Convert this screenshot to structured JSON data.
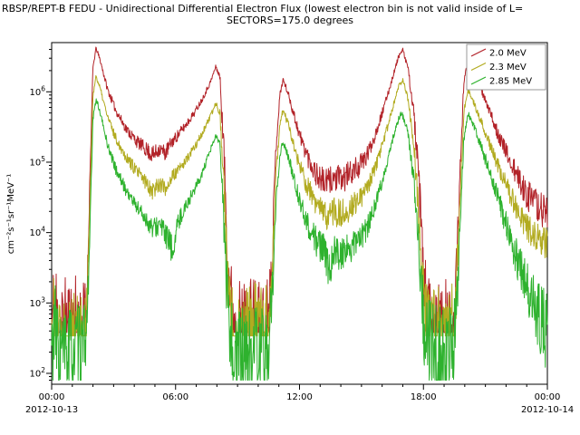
{
  "chart_data": {
    "type": "line",
    "title": "RBSP/REPT-B  FEDU - Unidirectional Differential Electron Flux (lowest electron bin is not valid inside of L=",
    "subtitle": "SECTORS=175.0 degrees",
    "ylabel": "cm⁻²s⁻¹sr⁻¹MeV⁻¹",
    "y_scale": "log",
    "ylim": [
      70,
      5000000
    ],
    "y_tick_exponents": [
      2,
      3,
      4,
      5,
      6
    ],
    "x_range_hours": [
      0,
      24
    ],
    "x_major_ticks": [
      {
        "h": 0,
        "label": "00:00"
      },
      {
        "h": 6,
        "label": "06:00"
      },
      {
        "h": 12,
        "label": "12:00"
      },
      {
        "h": 18,
        "label": "18:00"
      },
      {
        "h": 24,
        "label": "00:00"
      }
    ],
    "x_minor_step_hours": 1,
    "x_date_left": "2012-10-13",
    "x_date_right": "2012-10-14",
    "legend_position": "top-right",
    "series": [
      {
        "name": "2.0 MeV",
        "color": "#b22228",
        "floor": 380,
        "seed": 11,
        "points": [
          [
            0.0,
            450,
            0.8
          ],
          [
            0.15,
            900,
            0.85
          ],
          [
            0.35,
            420,
            0.8
          ],
          [
            0.6,
            380,
            0.8
          ],
          [
            0.9,
            450,
            0.8
          ],
          [
            1.2,
            400,
            0.8
          ],
          [
            1.5,
            420,
            0.75
          ],
          [
            1.7,
            900,
            0.4
          ],
          [
            1.85,
            60000,
            0.08
          ],
          [
            2.0,
            2200000,
            0.04
          ],
          [
            2.15,
            4200000,
            0.03
          ],
          [
            2.35,
            2800000,
            0.03
          ],
          [
            2.7,
            1100000,
            0.05
          ],
          [
            3.1,
            550000,
            0.06
          ],
          [
            3.6,
            300000,
            0.07
          ],
          [
            4.1,
            200000,
            0.09
          ],
          [
            4.6,
            150000,
            0.11
          ],
          [
            4.9,
            125000,
            0.13
          ],
          [
            5.2,
            155000,
            0.11
          ],
          [
            5.5,
            135000,
            0.12
          ],
          [
            5.8,
            190000,
            0.09
          ],
          [
            6.1,
            240000,
            0.08
          ],
          [
            6.5,
            340000,
            0.06
          ],
          [
            6.9,
            500000,
            0.05
          ],
          [
            7.3,
            800000,
            0.04
          ],
          [
            7.7,
            1400000,
            0.035
          ],
          [
            7.95,
            2300000,
            0.03
          ],
          [
            8.15,
            1600000,
            0.05
          ],
          [
            8.35,
            120000,
            0.25
          ],
          [
            8.55,
            3000,
            0.5
          ],
          [
            8.8,
            450,
            0.7
          ],
          [
            9.1,
            400,
            0.75
          ],
          [
            9.45,
            420,
            0.75
          ],
          [
            9.8,
            450,
            0.75
          ],
          [
            10.15,
            400,
            0.75
          ],
          [
            10.45,
            500,
            0.7
          ],
          [
            10.65,
            3000,
            0.4
          ],
          [
            10.85,
            150000,
            0.12
          ],
          [
            11.05,
            900000,
            0.05
          ],
          [
            11.2,
            1500000,
            0.035
          ],
          [
            11.45,
            950000,
            0.05
          ],
          [
            11.75,
            450000,
            0.08
          ],
          [
            12.05,
            220000,
            0.11
          ],
          [
            12.45,
            110000,
            0.15
          ],
          [
            12.85,
            65000,
            0.18
          ],
          [
            13.25,
            50000,
            0.2
          ],
          [
            13.65,
            60000,
            0.2
          ],
          [
            14.05,
            55000,
            0.2
          ],
          [
            14.45,
            70000,
            0.18
          ],
          [
            14.85,
            85000,
            0.16
          ],
          [
            15.25,
            120000,
            0.13
          ],
          [
            15.65,
            240000,
            0.09
          ],
          [
            16.05,
            550000,
            0.06
          ],
          [
            16.45,
            1400000,
            0.04
          ],
          [
            16.8,
            3200000,
            0.03
          ],
          [
            17.0,
            3900000,
            0.03
          ],
          [
            17.25,
            2200000,
            0.04
          ],
          [
            17.55,
            450000,
            0.12
          ],
          [
            17.8,
            40000,
            0.3
          ],
          [
            18.05,
            1500,
            0.5
          ],
          [
            18.35,
            450,
            0.7
          ],
          [
            18.7,
            400,
            0.75
          ],
          [
            19.0,
            380,
            0.75
          ],
          [
            19.3,
            450,
            0.7
          ],
          [
            19.55,
            800,
            0.6
          ],
          [
            19.75,
            50000,
            0.2
          ],
          [
            19.95,
            1300000,
            0.05
          ],
          [
            20.15,
            2900000,
            0.03
          ],
          [
            20.45,
            1900000,
            0.04
          ],
          [
            20.85,
            950000,
            0.05
          ],
          [
            21.25,
            480000,
            0.08
          ],
          [
            21.65,
            240000,
            0.11
          ],
          [
            22.05,
            130000,
            0.13
          ],
          [
            22.45,
            70000,
            0.17
          ],
          [
            22.85,
            42000,
            0.2
          ],
          [
            23.25,
            28000,
            0.23
          ],
          [
            23.65,
            22000,
            0.25
          ],
          [
            24.0,
            20000,
            0.25
          ]
        ]
      },
      {
        "name": "2.3 MeV",
        "color": "#b2ab20",
        "floor": 340,
        "seed": 22,
        "points": [
          [
            0.0,
            400,
            0.7
          ],
          [
            0.15,
            700,
            0.75
          ],
          [
            0.35,
            380,
            0.7
          ],
          [
            0.6,
            350,
            0.7
          ],
          [
            0.9,
            400,
            0.7
          ],
          [
            1.2,
            370,
            0.7
          ],
          [
            1.5,
            380,
            0.65
          ],
          [
            1.7,
            700,
            0.4
          ],
          [
            1.85,
            25000,
            0.08
          ],
          [
            2.0,
            900000,
            0.04
          ],
          [
            2.15,
            1700000,
            0.03
          ],
          [
            2.35,
            1100000,
            0.04
          ],
          [
            2.7,
            450000,
            0.05
          ],
          [
            3.1,
            220000,
            0.07
          ],
          [
            3.6,
            120000,
            0.08
          ],
          [
            4.1,
            75000,
            0.1
          ],
          [
            4.6,
            50000,
            0.12
          ],
          [
            4.9,
            40000,
            0.14
          ],
          [
            5.2,
            50000,
            0.12
          ],
          [
            5.5,
            42000,
            0.13
          ],
          [
            5.8,
            60000,
            0.1
          ],
          [
            6.1,
            75000,
            0.09
          ],
          [
            6.5,
            105000,
            0.07
          ],
          [
            6.9,
            160000,
            0.06
          ],
          [
            7.3,
            260000,
            0.05
          ],
          [
            7.7,
            450000,
            0.04
          ],
          [
            7.95,
            700000,
            0.035
          ],
          [
            8.15,
            500000,
            0.06
          ],
          [
            8.35,
            40000,
            0.25
          ],
          [
            8.55,
            1200,
            0.5
          ],
          [
            8.8,
            400,
            0.65
          ],
          [
            9.1,
            360,
            0.7
          ],
          [
            9.45,
            380,
            0.7
          ],
          [
            9.8,
            400,
            0.7
          ],
          [
            10.15,
            360,
            0.7
          ],
          [
            10.45,
            420,
            0.65
          ],
          [
            10.65,
            1500,
            0.4
          ],
          [
            10.85,
            60000,
            0.12
          ],
          [
            11.05,
            350000,
            0.05
          ],
          [
            11.2,
            550000,
            0.04
          ],
          [
            11.45,
            350000,
            0.06
          ],
          [
            11.75,
            160000,
            0.09
          ],
          [
            12.05,
            80000,
            0.12
          ],
          [
            12.45,
            40000,
            0.16
          ],
          [
            12.85,
            24000,
            0.19
          ],
          [
            13.25,
            17000,
            0.21
          ],
          [
            13.65,
            20000,
            0.21
          ],
          [
            14.05,
            18000,
            0.21
          ],
          [
            14.45,
            23000,
            0.19
          ],
          [
            14.85,
            28000,
            0.17
          ],
          [
            15.25,
            40000,
            0.14
          ],
          [
            15.65,
            80000,
            0.1
          ],
          [
            16.05,
            190000,
            0.07
          ],
          [
            16.45,
            500000,
            0.05
          ],
          [
            16.8,
            1200000,
            0.035
          ],
          [
            17.0,
            1500000,
            0.03
          ],
          [
            17.25,
            800000,
            0.05
          ],
          [
            17.55,
            160000,
            0.13
          ],
          [
            17.8,
            15000,
            0.3
          ],
          [
            18.05,
            800,
            0.5
          ],
          [
            18.35,
            400,
            0.65
          ],
          [
            18.7,
            360,
            0.7
          ],
          [
            19.0,
            340,
            0.7
          ],
          [
            19.3,
            400,
            0.65
          ],
          [
            19.55,
            600,
            0.55
          ],
          [
            19.75,
            20000,
            0.2
          ],
          [
            19.95,
            500000,
            0.05
          ],
          [
            20.15,
            1100000,
            0.035
          ],
          [
            20.45,
            700000,
            0.045
          ],
          [
            20.85,
            340000,
            0.06
          ],
          [
            21.25,
            170000,
            0.09
          ],
          [
            21.65,
            85000,
            0.12
          ],
          [
            22.05,
            45000,
            0.14
          ],
          [
            22.45,
            24000,
            0.18
          ],
          [
            22.85,
            14000,
            0.21
          ],
          [
            23.25,
            9000,
            0.24
          ],
          [
            23.65,
            7000,
            0.26
          ],
          [
            24.0,
            6500,
            0.26
          ]
        ]
      },
      {
        "name": "2.85 MeV",
        "color": "#2eb22e",
        "floor": 80,
        "seed": 33,
        "points": [
          [
            0.0,
            210,
            0.7
          ],
          [
            0.15,
            400,
            0.75
          ],
          [
            0.35,
            200,
            0.7
          ],
          [
            0.6,
            180,
            0.7
          ],
          [
            0.9,
            210,
            0.7
          ],
          [
            1.2,
            190,
            0.7
          ],
          [
            1.5,
            200,
            0.65
          ],
          [
            1.7,
            420,
            0.4
          ],
          [
            1.85,
            10000,
            0.1
          ],
          [
            2.0,
            400000,
            0.05
          ],
          [
            2.15,
            800000,
            0.035
          ],
          [
            2.35,
            500000,
            0.04
          ],
          [
            2.7,
            180000,
            0.06
          ],
          [
            3.1,
            80000,
            0.08
          ],
          [
            3.6,
            40000,
            0.09
          ],
          [
            4.1,
            24000,
            0.11
          ],
          [
            4.6,
            15000,
            0.13
          ],
          [
            4.9,
            11000,
            0.16
          ],
          [
            5.2,
            13000,
            0.14
          ],
          [
            5.5,
            10000,
            0.16
          ],
          [
            5.8,
            5000,
            0.3
          ],
          [
            6.0,
            9000,
            0.2
          ],
          [
            6.2,
            16000,
            0.12
          ],
          [
            6.5,
            24000,
            0.1
          ],
          [
            6.9,
            40000,
            0.08
          ],
          [
            7.3,
            70000,
            0.06
          ],
          [
            7.7,
            150000,
            0.05
          ],
          [
            7.95,
            240000,
            0.04
          ],
          [
            8.15,
            170000,
            0.07
          ],
          [
            8.35,
            12000,
            0.3
          ],
          [
            8.55,
            500,
            0.55
          ],
          [
            8.8,
            200,
            0.7
          ],
          [
            9.1,
            170,
            0.7
          ],
          [
            9.45,
            180,
            0.7
          ],
          [
            9.8,
            200,
            0.7
          ],
          [
            10.15,
            170,
            0.7
          ],
          [
            10.45,
            220,
            0.65
          ],
          [
            10.65,
            700,
            0.45
          ],
          [
            10.85,
            22000,
            0.14
          ],
          [
            11.05,
            130000,
            0.06
          ],
          [
            11.2,
            200000,
            0.05
          ],
          [
            11.45,
            120000,
            0.08
          ],
          [
            11.75,
            55000,
            0.1
          ],
          [
            12.05,
            26000,
            0.14
          ],
          [
            12.45,
            12000,
            0.18
          ],
          [
            12.85,
            7000,
            0.22
          ],
          [
            13.25,
            5000,
            0.26
          ],
          [
            13.45,
            3000,
            0.3
          ],
          [
            13.65,
            5500,
            0.26
          ],
          [
            14.05,
            5000,
            0.26
          ],
          [
            14.45,
            6000,
            0.24
          ],
          [
            14.85,
            7500,
            0.21
          ],
          [
            15.25,
            11000,
            0.17
          ],
          [
            15.65,
            24000,
            0.12
          ],
          [
            16.05,
            60000,
            0.08
          ],
          [
            16.45,
            180000,
            0.06
          ],
          [
            16.8,
            420000,
            0.04
          ],
          [
            16.95,
            500000,
            0.04
          ],
          [
            17.25,
            260000,
            0.06
          ],
          [
            17.55,
            50000,
            0.15
          ],
          [
            17.8,
            5000,
            0.35
          ],
          [
            18.05,
            400,
            0.55
          ],
          [
            18.35,
            210,
            0.7
          ],
          [
            18.7,
            180,
            0.7
          ],
          [
            19.0,
            170,
            0.7
          ],
          [
            19.3,
            220,
            0.65
          ],
          [
            19.55,
            380,
            0.55
          ],
          [
            19.75,
            8000,
            0.25
          ],
          [
            19.95,
            200000,
            0.06
          ],
          [
            20.15,
            500000,
            0.04
          ],
          [
            20.45,
            320000,
            0.05
          ],
          [
            20.85,
            150000,
            0.08
          ],
          [
            21.25,
            65000,
            0.11
          ],
          [
            21.65,
            28000,
            0.15
          ],
          [
            22.05,
            12000,
            0.2
          ],
          [
            22.45,
            5000,
            0.27
          ],
          [
            22.85,
            2200,
            0.33
          ],
          [
            23.25,
            1100,
            0.4
          ],
          [
            23.65,
            500,
            0.55
          ],
          [
            24.0,
            400,
            0.6
          ]
        ]
      }
    ]
  }
}
